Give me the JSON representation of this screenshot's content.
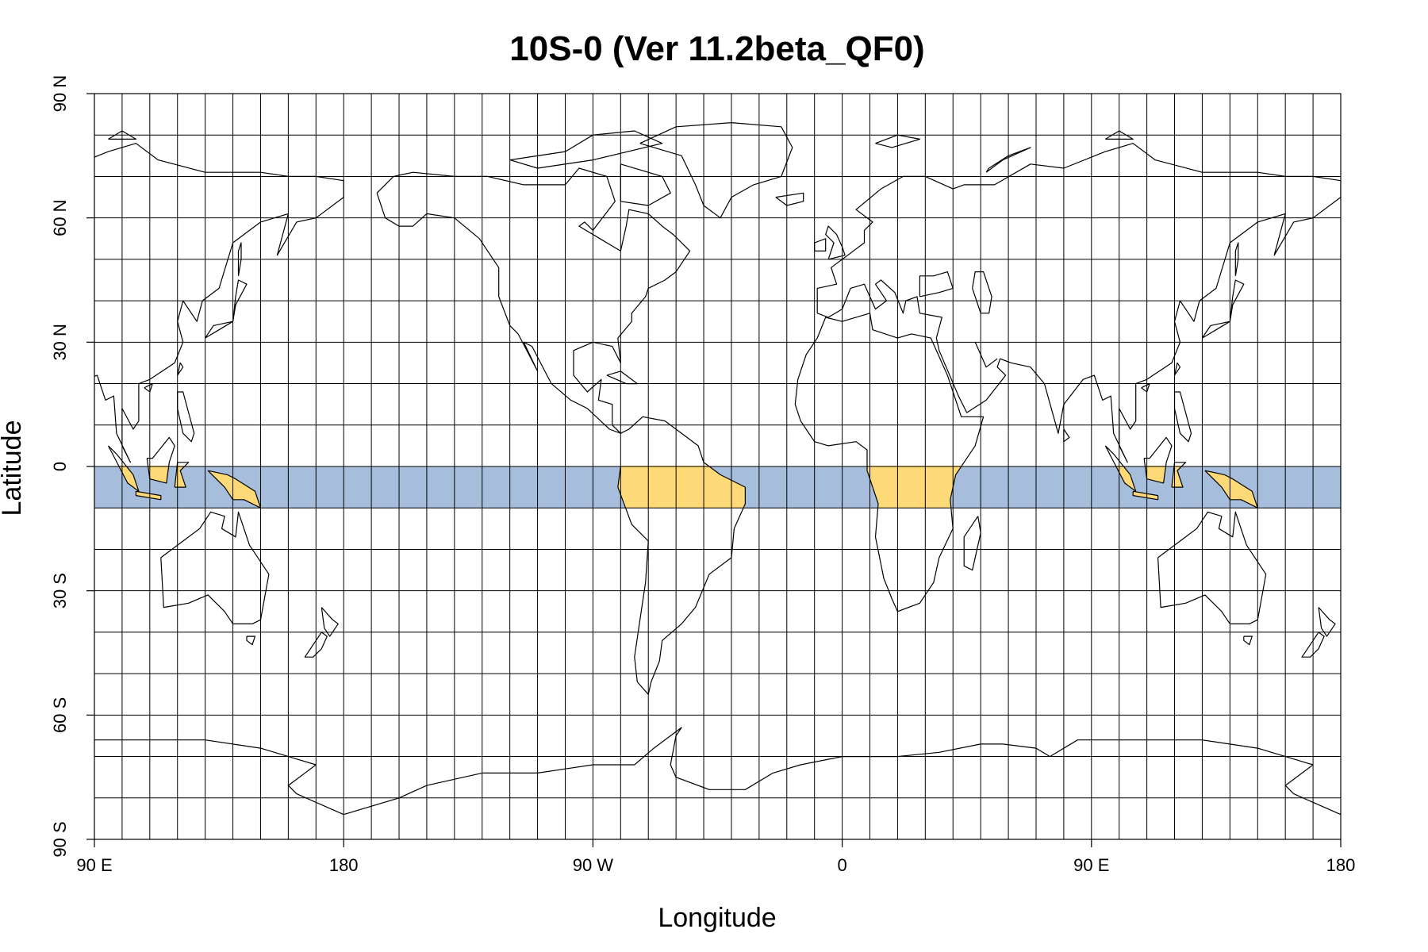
{
  "title": "10S-0 (Ver 11.2beta_QF0)",
  "xlabel": "Longitude",
  "ylabel": "Latitude",
  "x_tick_labels": [
    "90 E",
    "180",
    "90 W",
    "0",
    "90 E",
    "180"
  ],
  "y_tick_labels": [
    "90 N",
    "60 N",
    "30 N",
    "0",
    "30 S",
    "60 S",
    "90 S"
  ],
  "colors": {
    "band": "#a6bddb",
    "land_in_band": "#fdd978",
    "grid": "#000000",
    "coastline": "#000000"
  },
  "map": {
    "projection": "equirectangular",
    "lon_range_unwrapped": [
      90,
      540
    ],
    "lat_range": [
      -90,
      90
    ],
    "grid_step_deg": 10,
    "highlight_band": {
      "lat_min": -10,
      "lat_max": 0
    }
  }
}
